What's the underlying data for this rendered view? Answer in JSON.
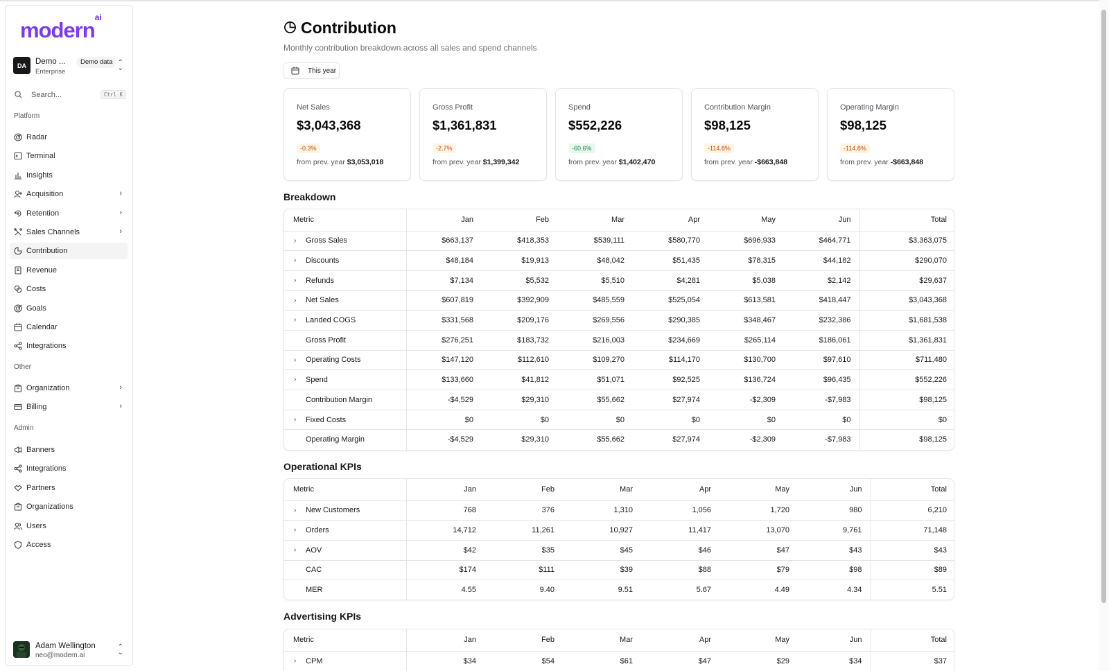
{
  "brand": {
    "logo_text": "modern",
    "logo_sup": "ai"
  },
  "org": {
    "initials": "DA",
    "name": "Demo ...",
    "plan": "Enterprise",
    "badge": "Demo data"
  },
  "search": {
    "placeholder": "Search...",
    "shortcut": "Ctrl K"
  },
  "sidebar": {
    "sections": [
      "Platform",
      "Other",
      "Admin"
    ],
    "platform": [
      {
        "label": "Radar",
        "icon": "radar-icon",
        "chevron": false
      },
      {
        "label": "Terminal",
        "icon": "terminal-icon",
        "chevron": false
      },
      {
        "label": "Insights",
        "icon": "bar-chart-icon",
        "chevron": false
      },
      {
        "label": "Acquisition",
        "icon": "user-plus-icon",
        "chevron": true
      },
      {
        "label": "Retention",
        "icon": "retention-icon",
        "chevron": true
      },
      {
        "label": "Sales Channels",
        "icon": "channels-icon",
        "chevron": true
      },
      {
        "label": "Contribution",
        "icon": "pie-chart-icon",
        "chevron": false,
        "active": true
      },
      {
        "label": "Revenue",
        "icon": "receipt-icon",
        "chevron": false
      },
      {
        "label": "Costs",
        "icon": "coins-icon",
        "chevron": false
      },
      {
        "label": "Goals",
        "icon": "goal-icon",
        "chevron": false
      },
      {
        "label": "Calendar",
        "icon": "calendar-icon",
        "chevron": false
      },
      {
        "label": "Integrations",
        "icon": "share-icon",
        "chevron": false
      }
    ],
    "other": [
      {
        "label": "Organization",
        "icon": "building-icon",
        "chevron": true
      },
      {
        "label": "Billing",
        "icon": "credit-card-icon",
        "chevron": true
      }
    ],
    "admin": [
      {
        "label": "Banners",
        "icon": "megaphone-icon",
        "chevron": false
      },
      {
        "label": "Integrations",
        "icon": "share-icon",
        "chevron": false
      },
      {
        "label": "Partners",
        "icon": "handshake-icon",
        "chevron": false
      },
      {
        "label": "Organizations",
        "icon": "building-icon",
        "chevron": false
      },
      {
        "label": "Users",
        "icon": "users-icon",
        "chevron": false
      },
      {
        "label": "Access",
        "icon": "shield-icon",
        "chevron": false
      }
    ]
  },
  "user": {
    "name": "Adam Wellington",
    "email": "neo@modern.ai"
  },
  "page": {
    "title": "Contribution",
    "subtitle": "Monthly contribution breakdown across all sales and spend channels",
    "date_filter": "This year"
  },
  "cards": [
    {
      "label": "Net Sales",
      "value": "$3,043,368",
      "change": "-0.3%",
      "tone": "warn",
      "prev_text": "from prev. year",
      "prev_value": "$3,053,018"
    },
    {
      "label": "Gross Profit",
      "value": "$1,361,831",
      "change": "-2.7%",
      "tone": "warn",
      "prev_text": "from prev. year",
      "prev_value": "$1,399,342"
    },
    {
      "label": "Spend",
      "value": "$552,226",
      "change": "-60.6%",
      "tone": "good",
      "prev_text": "from prev. year",
      "prev_value": "$1,402,470"
    },
    {
      "label": "Contribution Margin",
      "value": "$98,125",
      "change": "-114.8%",
      "tone": "warn",
      "prev_text": "from prev. year",
      "prev_value": "-$663,848"
    },
    {
      "label": "Operating Margin",
      "value": "$98,125",
      "change": "-114.8%",
      "tone": "warn",
      "prev_text": "from prev. year",
      "prev_value": "-$663,848"
    }
  ],
  "breakdown": {
    "title": "Breakdown",
    "columns": [
      "Metric",
      "Jan",
      "Feb",
      "Mar",
      "Apr",
      "May",
      "Jun",
      "Total"
    ],
    "rows": [
      {
        "metric": "Gross Sales",
        "expand": true,
        "values": [
          "$663,137",
          "$418,353",
          "$539,111",
          "$580,770",
          "$696,933",
          "$464,771",
          "$3,363,075"
        ]
      },
      {
        "metric": "Discounts",
        "expand": true,
        "values": [
          "$48,184",
          "$19,913",
          "$48,042",
          "$51,435",
          "$78,315",
          "$44,182",
          "$290,070"
        ]
      },
      {
        "metric": "Refunds",
        "expand": true,
        "values": [
          "$7,134",
          "$5,532",
          "$5,510",
          "$4,281",
          "$5,038",
          "$2,142",
          "$29,637"
        ]
      },
      {
        "metric": "Net Sales",
        "expand": true,
        "values": [
          "$607,819",
          "$392,909",
          "$485,559",
          "$525,054",
          "$613,581",
          "$418,447",
          "$3,043,368"
        ]
      },
      {
        "metric": "Landed COGS",
        "expand": true,
        "values": [
          "$331,568",
          "$209,176",
          "$269,556",
          "$290,385",
          "$348,467",
          "$232,386",
          "$1,681,538"
        ]
      },
      {
        "metric": "Gross Profit",
        "expand": false,
        "values": [
          "$276,251",
          "$183,732",
          "$216,003",
          "$234,669",
          "$265,114",
          "$186,061",
          "$1,361,831"
        ]
      },
      {
        "metric": "Operating Costs",
        "expand": true,
        "values": [
          "$147,120",
          "$112,610",
          "$109,270",
          "$114,170",
          "$130,700",
          "$97,610",
          "$711,480"
        ]
      },
      {
        "metric": "Spend",
        "expand": true,
        "values": [
          "$133,660",
          "$41,812",
          "$51,071",
          "$92,525",
          "$136,724",
          "$96,435",
          "$552,226"
        ]
      },
      {
        "metric": "Contribution Margin",
        "expand": false,
        "values": [
          "-$4,529",
          "$29,310",
          "$55,662",
          "$27,974",
          "-$2,309",
          "-$7,983",
          "$98,125"
        ]
      },
      {
        "metric": "Fixed Costs",
        "expand": true,
        "values": [
          "$0",
          "$0",
          "$0",
          "$0",
          "$0",
          "$0",
          "$0"
        ]
      },
      {
        "metric": "Operating Margin",
        "expand": false,
        "values": [
          "-$4,529",
          "$29,310",
          "$55,662",
          "$27,974",
          "-$2,309",
          "-$7,983",
          "$98,125"
        ]
      }
    ]
  },
  "operational": {
    "title": "Operational KPIs",
    "columns": [
      "Metric",
      "Jan",
      "Feb",
      "Mar",
      "Apr",
      "May",
      "Jun",
      "Total"
    ],
    "rows": [
      {
        "metric": "New Customers",
        "expand": true,
        "values": [
          "768",
          "376",
          "1,310",
          "1,056",
          "1,720",
          "980",
          "6,210"
        ]
      },
      {
        "metric": "Orders",
        "expand": true,
        "values": [
          "14,712",
          "11,261",
          "10,927",
          "11,417",
          "13,070",
          "9,761",
          "71,148"
        ]
      },
      {
        "metric": "AOV",
        "expand": true,
        "values": [
          "$42",
          "$35",
          "$45",
          "$46",
          "$47",
          "$43",
          "$43"
        ]
      },
      {
        "metric": "CAC",
        "expand": false,
        "values": [
          "$174",
          "$111",
          "$39",
          "$88",
          "$79",
          "$98",
          "$89"
        ]
      },
      {
        "metric": "MER",
        "expand": false,
        "values": [
          "4.55",
          "9.40",
          "9.51",
          "5.67",
          "4.49",
          "4.34",
          "5.51"
        ]
      }
    ]
  },
  "advertising": {
    "title": "Advertising KPIs",
    "columns": [
      "Metric",
      "Jan",
      "Feb",
      "Mar",
      "Apr",
      "May",
      "Jun",
      "Total"
    ],
    "rows": [
      {
        "metric": "CPM",
        "expand": true,
        "values": [
          "$34",
          "$54",
          "$61",
          "$47",
          "$29",
          "$34",
          "$37"
        ]
      }
    ]
  }
}
